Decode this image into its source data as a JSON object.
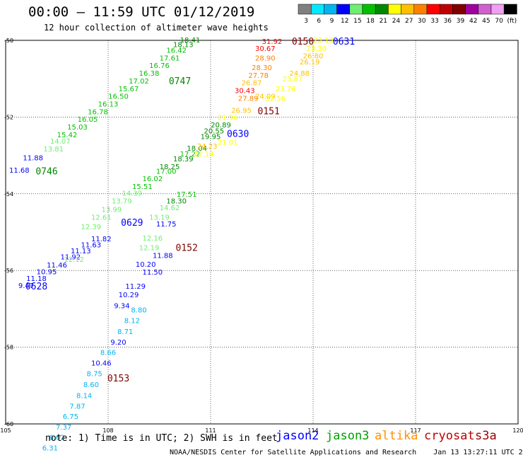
{
  "header": {
    "title": "00:00 – 11:59 UTC 01/12/2019",
    "subtitle": "12 hour collection of altimeter wave heights"
  },
  "color_scale": {
    "colors": [
      "#808080",
      "#00e8ff",
      "#00b4f0",
      "#0000ff",
      "#70ee70",
      "#00c000",
      "#008800",
      "#ffff00",
      "#ffc000",
      "#ff8000",
      "#ff0000",
      "#c00000",
      "#800000",
      "#a000a0",
      "#d060d0",
      "#f0a0f0",
      "#000000"
    ],
    "labels": [
      "3",
      "6",
      "9",
      "12",
      "15",
      "18",
      "21",
      "24",
      "27",
      "30",
      "33",
      "36",
      "39",
      "42",
      "45",
      "70",
      "(ft)"
    ]
  },
  "map": {
    "lon_range": [
      105,
      120
    ],
    "lat_range": [
      -60,
      -50
    ],
    "lon_ticks": [
      "105",
      "108",
      "111",
      "114",
      "117",
      "120"
    ],
    "lat_ticks": [
      "-50",
      "-52",
      "-54",
      "-56",
      "-58",
      "-60"
    ],
    "grid": true
  },
  "chart_data": {
    "type": "scatter",
    "x_unit": "degrees longitude",
    "y_unit": "degrees latitude",
    "value_unit": "ft",
    "series": [
      {
        "name": "jason2",
        "points": [
          {
            "x": 105.6,
            "y": -56.38,
            "v": 9.47
          },
          {
            "x": 105.9,
            "y": -56.2,
            "v": 11.18
          },
          {
            "x": 106.2,
            "y": -56.02,
            "v": 10.95
          },
          {
            "x": 106.5,
            "y": -55.85,
            "v": 11.46
          },
          {
            "x": 106.9,
            "y": -55.64,
            "v": 11.92
          },
          {
            "x": 107.2,
            "y": -55.48,
            "v": 11.13
          },
          {
            "x": 107.5,
            "y": -55.32,
            "v": 11.63
          },
          {
            "x": 107.8,
            "y": -55.17,
            "v": 11.82
          },
          {
            "x": 105.8,
            "y": -53.05,
            "v": 11.88
          },
          {
            "x": 105.4,
            "y": -53.38,
            "v": 11.68
          },
          {
            "x": 110.2,
            "y": -53.08,
            "v": 18.39
          },
          {
            "x": 109.8,
            "y": -53.28,
            "v": 18.25
          },
          {
            "x": 109.7,
            "y": -54.78,
            "v": 11.75
          },
          {
            "x": 109.6,
            "y": -55.6,
            "v": 11.88
          },
          {
            "x": 109.3,
            "y": -56.03,
            "v": 11.5
          },
          {
            "x": 109.1,
            "y": -55.83,
            "v": 10.2
          },
          {
            "x": 108.8,
            "y": -56.4,
            "v": 11.29
          },
          {
            "x": 108.6,
            "y": -56.62,
            "v": 10.29
          },
          {
            "x": 108.4,
            "y": -56.91,
            "v": 9.34
          }
        ],
        "time_labels": [
          {
            "text": "0628",
            "x": 105.9,
            "y": -56.4
          },
          {
            "text": "0629",
            "x": 108.7,
            "y": -54.74
          },
          {
            "text": "0630",
            "x": 111.8,
            "y": -52.43
          },
          {
            "text": "0631",
            "x": 114.9,
            "y": -50.02
          }
        ]
      },
      {
        "name": "jason3",
        "points": [
          {
            "x": 106.4,
            "y": -52.82,
            "v": 13.81
          },
          {
            "x": 106.6,
            "y": -52.62,
            "v": 14.07
          },
          {
            "x": 106.8,
            "y": -52.45,
            "v": 15.42
          },
          {
            "x": 107.1,
            "y": -52.25,
            "v": 15.03
          },
          {
            "x": 107.4,
            "y": -52.05,
            "v": 16.05
          },
          {
            "x": 107.7,
            "y": -51.85,
            "v": 16.78
          },
          {
            "x": 108.0,
            "y": -51.65,
            "v": 16.13
          },
          {
            "x": 108.3,
            "y": -51.45,
            "v": 16.5
          },
          {
            "x": 108.6,
            "y": -51.25,
            "v": 15.67
          },
          {
            "x": 108.9,
            "y": -51.05,
            "v": 17.02
          },
          {
            "x": 109.2,
            "y": -50.85,
            "v": 16.38
          },
          {
            "x": 109.5,
            "y": -50.65,
            "v": 16.76
          },
          {
            "x": 109.8,
            "y": -50.45,
            "v": 17.61
          },
          {
            "x": 110.0,
            "y": -50.25,
            "v": 16.42
          },
          {
            "x": 110.2,
            "y": -50.1,
            "v": 18.13
          },
          {
            "x": 110.4,
            "y": -49.98,
            "v": 18.41
          },
          {
            "x": 108.7,
            "y": -53.98,
            "v": 14.39
          },
          {
            "x": 108.4,
            "y": -54.18,
            "v": 13.79
          },
          {
            "x": 108.1,
            "y": -54.4,
            "v": 13.99
          },
          {
            "x": 107.8,
            "y": -54.6,
            "v": 12.61
          },
          {
            "x": 107.5,
            "y": -54.85,
            "v": 12.39
          },
          {
            "x": 107.0,
            "y": -55.7,
            "v": 12.12
          },
          {
            "x": 109.3,
            "y": -53.6,
            "v": 16.02
          },
          {
            "x": 109.0,
            "y": -53.8,
            "v": 15.51
          },
          {
            "x": 109.7,
            "y": -53.4,
            "v": 17.0
          },
          {
            "x": 110.6,
            "y": -52.8,
            "v": 18.04
          },
          {
            "x": 110.4,
            "y": -52.95,
            "v": 17.22
          },
          {
            "x": 111.0,
            "y": -52.5,
            "v": 19.95
          },
          {
            "x": 110.3,
            "y": -54.0,
            "v": 17.51
          },
          {
            "x": 110.0,
            "y": -54.18,
            "v": 18.3
          },
          {
            "x": 109.8,
            "y": -54.35,
            "v": 14.62
          },
          {
            "x": 109.5,
            "y": -54.6,
            "v": 13.19
          },
          {
            "x": 109.3,
            "y": -55.15,
            "v": 12.16
          },
          {
            "x": 109.2,
            "y": -55.4,
            "v": 12.19
          }
        ],
        "time_labels": [
          {
            "text": "0746",
            "x": 106.2,
            "y": -53.4
          },
          {
            "text": "0747",
            "x": 110.1,
            "y": -51.05
          }
        ]
      },
      {
        "name": "altika",
        "points": [
          {
            "x": 112.6,
            "y": -50.45,
            "v": 28.9
          },
          {
            "x": 112.5,
            "y": -50.7,
            "v": 28.3
          },
          {
            "x": 112.2,
            "y": -51.1,
            "v": 26.87
          },
          {
            "x": 112.4,
            "y": -50.9,
            "v": 27.78
          },
          {
            "x": 112.1,
            "y": -51.5,
            "v": 27.89
          },
          {
            "x": 112.6,
            "y": -51.45,
            "v": 24.09
          },
          {
            "x": 111.9,
            "y": -51.82,
            "v": 26.95
          },
          {
            "x": 111.5,
            "y": -52.0,
            "v": 21.96
          },
          {
            "x": 111.3,
            "y": -52.2,
            "v": 20.89
          },
          {
            "x": 111.1,
            "y": -52.35,
            "v": 20.55
          },
          {
            "x": 110.8,
            "y": -52.95,
            "v": 22.14
          },
          {
            "x": 110.9,
            "y": -52.75,
            "v": 24.23
          },
          {
            "x": 113.9,
            "y": -50.55,
            "v": 26.19
          },
          {
            "x": 114.0,
            "y": -50.4,
            "v": 26.8
          },
          {
            "x": 113.6,
            "y": -50.85,
            "v": 24.88
          }
        ],
        "time_labels": []
      },
      {
        "name": "cryosat",
        "points": [
          {
            "x": 112.8,
            "y": -50.02,
            "v": 31.92
          },
          {
            "x": 112.6,
            "y": -50.2,
            "v": 30.67
          },
          {
            "x": 112.0,
            "y": -51.3,
            "v": 30.43
          }
        ],
        "time_labels": [
          {
            "text": "0150",
            "x": 113.7,
            "y": -50.02
          },
          {
            "text": "0151",
            "x": 112.7,
            "y": -51.84
          },
          {
            "text": "0152",
            "x": 110.3,
            "y": -55.4
          },
          {
            "text": "0153",
            "x": 108.3,
            "y": -58.8
          }
        ]
      },
      {
        "name": "s3a",
        "points": [
          {
            "x": 114.3,
            "y": -49.98,
            "v": 23.13
          },
          {
            "x": 114.1,
            "y": -50.2,
            "v": 23.3
          },
          {
            "x": 113.4,
            "y": -51.0,
            "v": 23.87
          },
          {
            "x": 113.2,
            "y": -51.25,
            "v": 23.76
          },
          {
            "x": 112.9,
            "y": -51.5,
            "v": 22.56
          },
          {
            "x": 111.5,
            "y": -52.65,
            "v": 21.01
          },
          {
            "x": 108.9,
            "y": -57.02,
            "v": 8.8
          },
          {
            "x": 108.7,
            "y": -57.3,
            "v": 8.12
          },
          {
            "x": 108.5,
            "y": -57.58,
            "v": 8.71
          },
          {
            "x": 108.3,
            "y": -57.86,
            "v": 9.2
          },
          {
            "x": 108.0,
            "y": -58.13,
            "v": 8.66
          },
          {
            "x": 107.8,
            "y": -58.4,
            "v": 10.46
          },
          {
            "x": 107.6,
            "y": -58.68,
            "v": 8.75
          },
          {
            "x": 107.5,
            "y": -58.97,
            "v": 8.6
          },
          {
            "x": 107.3,
            "y": -59.25,
            "v": 8.14
          },
          {
            "x": 107.1,
            "y": -59.53,
            "v": 7.87
          },
          {
            "x": 106.9,
            "y": -59.8,
            "v": 6.75
          },
          {
            "x": 106.7,
            "y": -60.07,
            "v": 7.37
          },
          {
            "x": 106.5,
            "y": -60.34,
            "v": 6.62
          },
          {
            "x": 106.3,
            "y": -60.62,
            "v": 6.31
          }
        ],
        "time_labels": []
      }
    ]
  },
  "footer": {
    "note": "note: 1) Time is in UTC; 2) SWH is in feet",
    "legend": [
      {
        "name": "jason2",
        "color": "#0000ff"
      },
      {
        "name": "jason3",
        "color": "#00a000"
      },
      {
        "name": "altika",
        "color": "#ff9000"
      },
      {
        "name": "cryosat",
        "color": "#c00000"
      },
      {
        "name": "s3a",
        "color": "#a00000"
      }
    ],
    "credit": "NOAA/NESDIS Center for Satellite Applications and Research    Jan 13 13:27:11 UTC 2019"
  }
}
